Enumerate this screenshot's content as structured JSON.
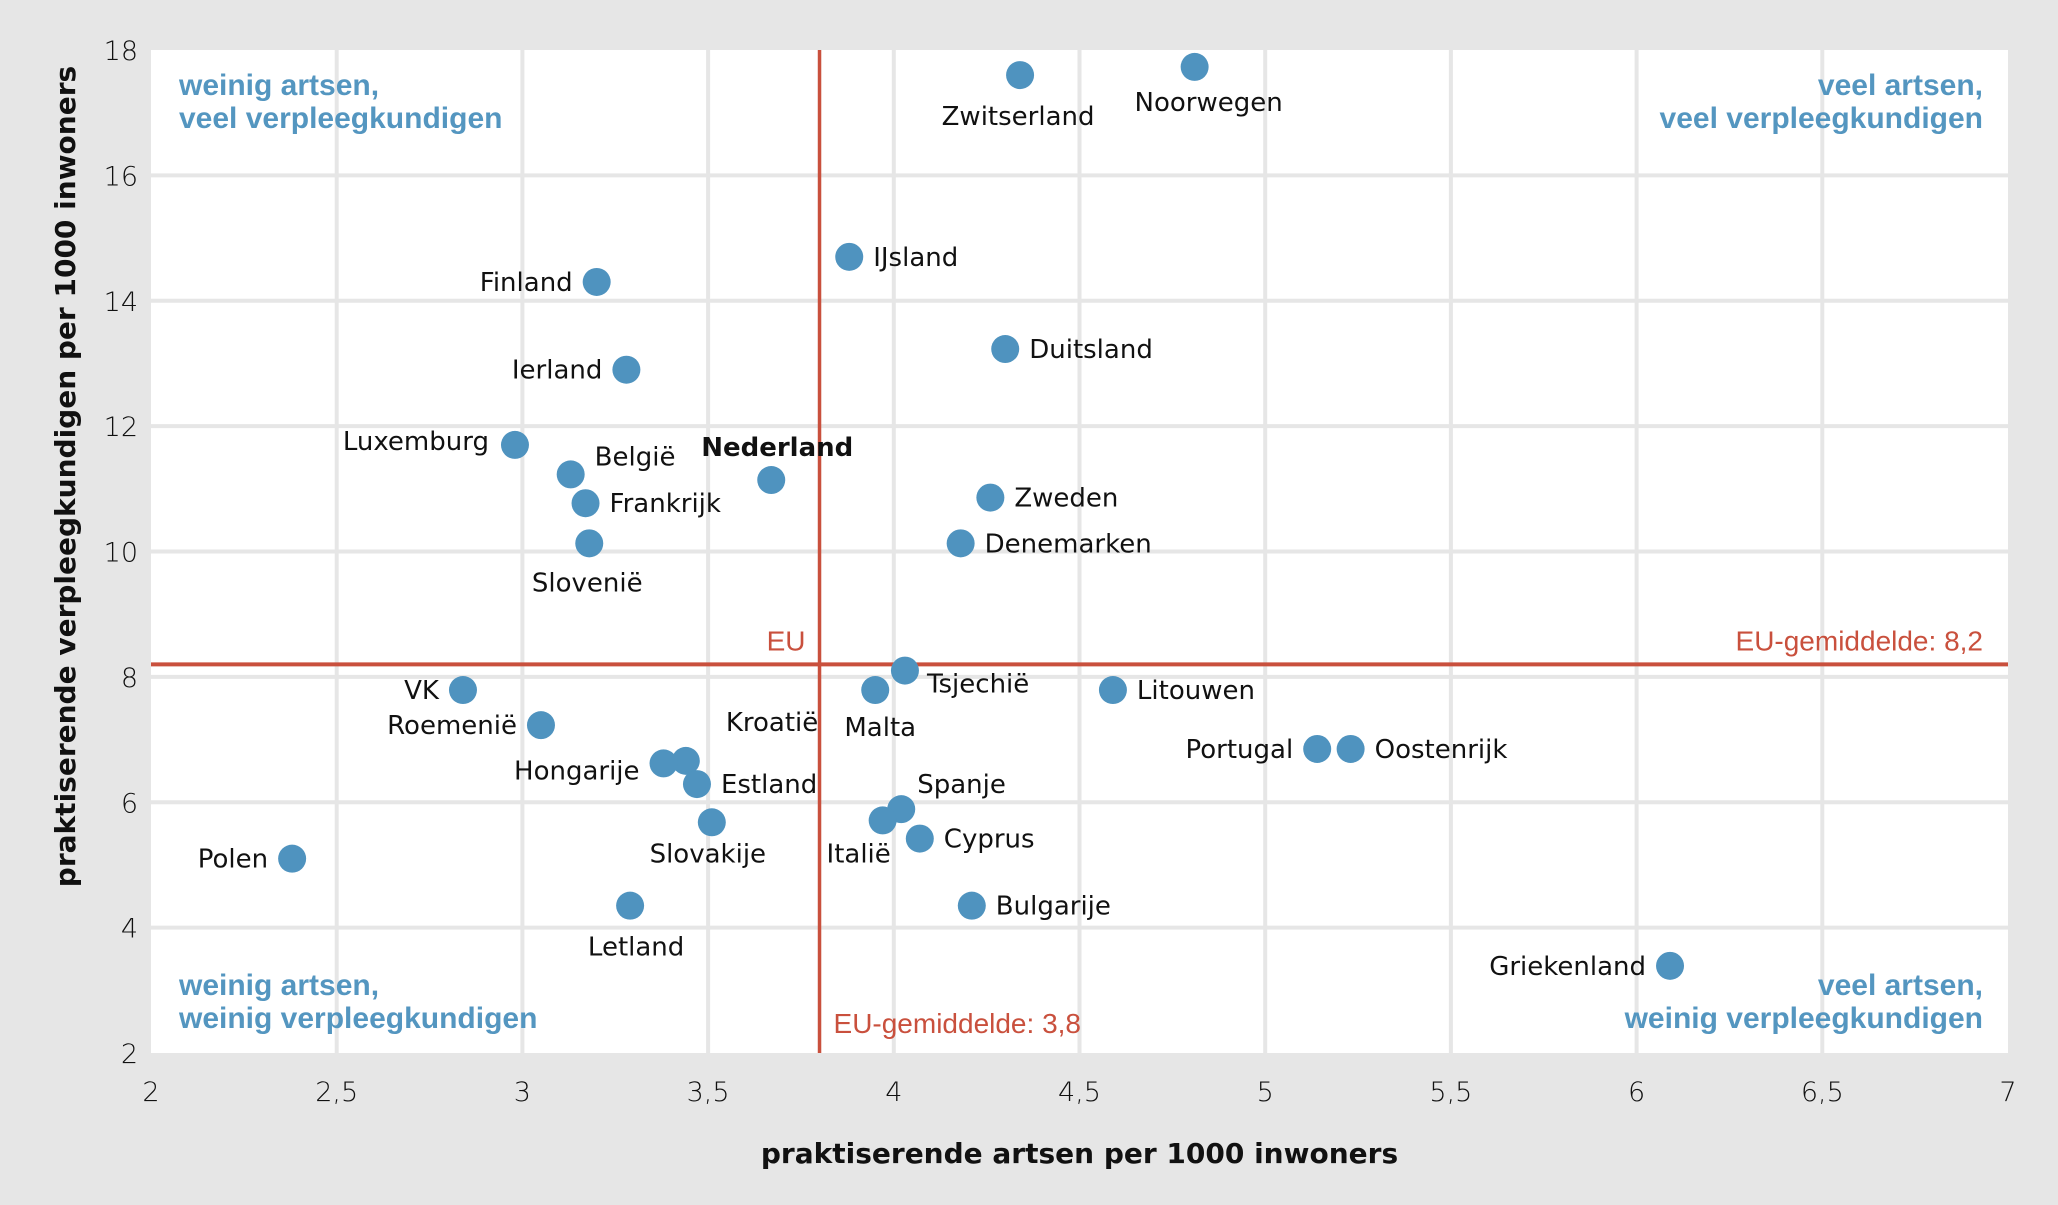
{
  "chart_data": {
    "type": "scatter",
    "title": "",
    "xlabel": "praktiserende artsen per 1000 inwoners",
    "ylabel": "praktiserende verpleegkundigen per 1000 inwoners",
    "xlim": [
      2,
      7
    ],
    "ylim": [
      2,
      18
    ],
    "x_ticks": [
      2,
      2.5,
      3,
      3.5,
      4,
      4.5,
      5,
      5.5,
      6,
      6.5,
      7
    ],
    "x_tick_labels": [
      "2",
      "2,5",
      "3",
      "3,5",
      "4",
      "4,5",
      "5",
      "5,5",
      "6",
      "6,5",
      "7"
    ],
    "y_ticks": [
      2,
      4,
      6,
      8,
      10,
      12,
      14,
      16,
      18
    ],
    "y_tick_labels": [
      "2",
      "4",
      "6",
      "8",
      "10",
      "12",
      "14",
      "16",
      "18"
    ],
    "grid": true,
    "point_color": "#4f93bf",
    "reference_color": "#c9503d",
    "quadrant_color": "#5496c0",
    "reference_lines": {
      "vertical": {
        "x": 3.8,
        "top_label": "EU",
        "bottom_label": "EU-gemiddelde: 3,8"
      },
      "horizontal": {
        "y": 8.2,
        "label": "EU-gemiddelde: 8,2"
      }
    },
    "quadrant_labels": {
      "top_left": [
        "weinig artsen,",
        "veel verpleegkundigen"
      ],
      "top_right": [
        "veel artsen,",
        "veel verpleegkundigen"
      ],
      "bottom_left": [
        "weinig artsen,",
        "weinig verpleegkundigen"
      ],
      "bottom_right": [
        "veel artsen,",
        "weinig verpleegkundigen"
      ]
    },
    "points": [
      {
        "name": "Zwitserland",
        "x": 4.34,
        "y": 17.6,
        "pos": "below"
      },
      {
        "name": "Noorwegen",
        "x": 4.81,
        "y": 17.73,
        "pos": "below"
      },
      {
        "name": "IJsland",
        "x": 3.88,
        "y": 14.7,
        "pos": "right"
      },
      {
        "name": "Finland",
        "x": 3.2,
        "y": 14.3,
        "pos": "left"
      },
      {
        "name": "Duitsland",
        "x": 4.3,
        "y": 13.23,
        "pos": "right"
      },
      {
        "name": "Ierland",
        "x": 3.28,
        "y": 12.9,
        "pos": "left"
      },
      {
        "name": "Luxemburg",
        "x": 2.98,
        "y": 11.7,
        "pos": "left-up"
      },
      {
        "name": "België",
        "x": 3.13,
        "y": 11.23,
        "pos": "above-right"
      },
      {
        "name": "Nederland",
        "x": 3.67,
        "y": 11.14,
        "pos": "above",
        "bold": true
      },
      {
        "name": "Zweden",
        "x": 4.26,
        "y": 10.86,
        "pos": "right"
      },
      {
        "name": "Frankrijk",
        "x": 3.17,
        "y": 10.77,
        "pos": "right"
      },
      {
        "name": "Slovenië",
        "x": 3.18,
        "y": 10.13,
        "pos": "below"
      },
      {
        "name": "Denemarken",
        "x": 4.18,
        "y": 10.13,
        "pos": "right"
      },
      {
        "name": "Tsjechië",
        "x": 4.03,
        "y": 8.1,
        "pos": "right-down"
      },
      {
        "name": "VK",
        "x": 2.84,
        "y": 7.79,
        "pos": "left"
      },
      {
        "name": "Malta",
        "x": 3.95,
        "y": 7.79,
        "pos": "below"
      },
      {
        "name": "Litouwen",
        "x": 4.59,
        "y": 7.79,
        "pos": "right"
      },
      {
        "name": "Roemenië",
        "x": 3.05,
        "y": 7.23,
        "pos": "left"
      },
      {
        "name": "Portugal",
        "x": 5.14,
        "y": 6.85,
        "pos": "left"
      },
      {
        "name": "Oostenrijk",
        "x": 5.23,
        "y": 6.85,
        "pos": "right"
      },
      {
        "name": "Kroatië",
        "x": 3.44,
        "y": 6.66,
        "pos": "above-right"
      },
      {
        "name": "Hongarije",
        "x": 3.38,
        "y": 6.62,
        "pos": "left-down"
      },
      {
        "name": "Estland",
        "x": 3.47,
        "y": 6.29,
        "pos": "right"
      },
      {
        "name": "Spanje",
        "x": 4.02,
        "y": 5.89,
        "pos": "above-right"
      },
      {
        "name": "Italië",
        "x": 3.97,
        "y": 5.71,
        "pos": "below-left"
      },
      {
        "name": "Slovakije",
        "x": 3.51,
        "y": 5.68,
        "pos": "below"
      },
      {
        "name": "Cyprus",
        "x": 4.07,
        "y": 5.42,
        "pos": "right"
      },
      {
        "name": "Polen",
        "x": 2.38,
        "y": 5.1,
        "pos": "left"
      },
      {
        "name": "Bulgarije",
        "x": 4.21,
        "y": 4.35,
        "pos": "right"
      },
      {
        "name": "Letland",
        "x": 3.29,
        "y": 4.35,
        "pos": "below"
      },
      {
        "name": "Griekenland",
        "x": 6.09,
        "y": 3.39,
        "pos": "left"
      }
    ]
  }
}
